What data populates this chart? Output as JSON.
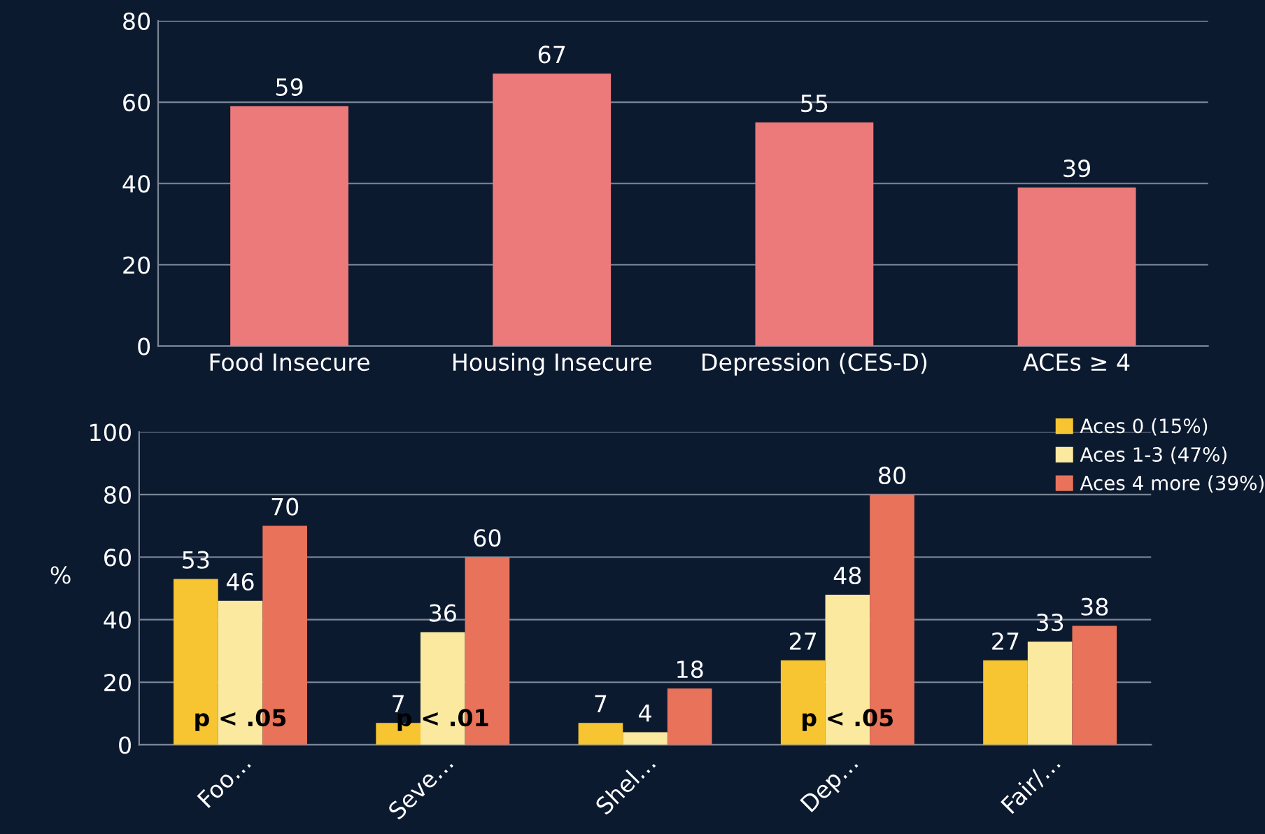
{
  "chart_data": [
    {
      "type": "bar",
      "categories": [
        "Food Insecure",
        "Housing Insecure",
        "Depression (CES-D)",
        "ACEs ≥ 4"
      ],
      "values": [
        59,
        67,
        55,
        39
      ],
      "color": "#ec7a7b",
      "ylim": [
        0,
        80
      ],
      "yticks": [
        0,
        20,
        40,
        60,
        80
      ],
      "grid": "y",
      "data_labels": true,
      "legend": false
    },
    {
      "type": "bar",
      "categories": [
        "Foo…",
        "Seve…",
        "Shel…",
        "Dep…",
        "Fair/…"
      ],
      "ylabel": "%",
      "ylim": [
        0,
        100
      ],
      "yticks": [
        0,
        20,
        40,
        60,
        80,
        100
      ],
      "grid": "y",
      "data_labels": true,
      "legend": "top right",
      "series": [
        {
          "name": "Aces 0 (15%)",
          "color": "#f7c531",
          "values": [
            53,
            7,
            7,
            27,
            27
          ]
        },
        {
          "name": "Aces 1-3 (47%)",
          "color": "#fbe9a0",
          "values": [
            46,
            36,
            4,
            48,
            33
          ]
        },
        {
          "name": "Aces 4 more (39%)",
          "color": "#e8735a",
          "values": [
            70,
            60,
            18,
            80,
            38
          ]
        }
      ],
      "annotations": [
        {
          "text": "p < .05",
          "x": "Foo…",
          "y": 8
        },
        {
          "text": "p < .01",
          "x": "Seve…",
          "y": 8
        },
        {
          "text": "p < .05",
          "x": "Dep…",
          "y": 8
        }
      ]
    }
  ]
}
